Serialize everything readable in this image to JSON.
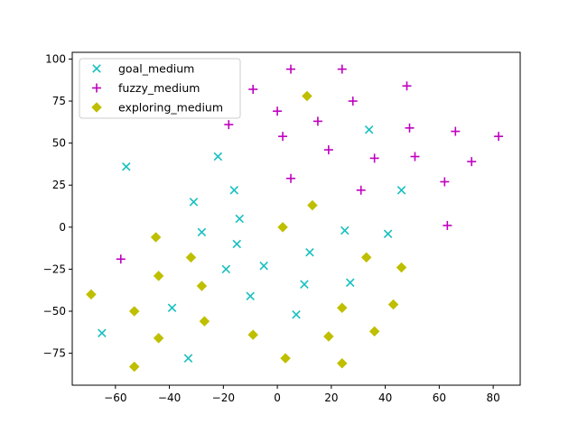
{
  "chart_data": {
    "type": "scatter",
    "title": "",
    "xlabel": "",
    "ylabel": "",
    "xlim": [
      -76,
      90
    ],
    "ylim": [
      -94,
      104
    ],
    "xticks": [
      -60,
      -40,
      -20,
      0,
      20,
      40,
      60,
      80
    ],
    "yticks": [
      -75,
      -50,
      -25,
      0,
      25,
      50,
      75,
      100
    ],
    "xtick_labels": [
      "−60",
      "−40",
      "−20",
      "0",
      "20",
      "40",
      "60",
      "80"
    ],
    "ytick_labels": [
      "−75",
      "−50",
      "−25",
      "0",
      "25",
      "50",
      "75",
      "100"
    ],
    "grid": false,
    "legend": "top-left",
    "series": [
      {
        "name": "goal_medium",
        "marker": "x",
        "color": "#17bfbf",
        "points": [
          [
            -56,
            36
          ],
          [
            -22,
            42
          ],
          [
            -31,
            15
          ],
          [
            -16,
            22
          ],
          [
            -14,
            5
          ],
          [
            -28,
            -3
          ],
          [
            -15,
            -10
          ],
          [
            -19,
            -25
          ],
          [
            -5,
            -23
          ],
          [
            12,
            -15
          ],
          [
            25,
            -2
          ],
          [
            41,
            -4
          ],
          [
            46,
            22
          ],
          [
            34,
            58
          ],
          [
            10,
            -34
          ],
          [
            27,
            -33
          ],
          [
            -10,
            -41
          ],
          [
            -39,
            -48
          ],
          [
            7,
            -52
          ],
          [
            -65,
            -63
          ],
          [
            -33,
            -78
          ]
        ]
      },
      {
        "name": "fuzzy_medium",
        "marker": "+",
        "color": "#bf00bf",
        "points": [
          [
            5,
            94
          ],
          [
            24,
            94
          ],
          [
            -9,
            82
          ],
          [
            28,
            75
          ],
          [
            48,
            84
          ],
          [
            0,
            69
          ],
          [
            15,
            63
          ],
          [
            -18,
            61
          ],
          [
            49,
            59
          ],
          [
            66,
            57
          ],
          [
            82,
            54
          ],
          [
            2,
            54
          ],
          [
            19,
            46
          ],
          [
            36,
            41
          ],
          [
            51,
            42
          ],
          [
            72,
            39
          ],
          [
            5,
            29
          ],
          [
            31,
            22
          ],
          [
            62,
            27
          ],
          [
            63,
            1
          ],
          [
            -58,
            -19
          ]
        ]
      },
      {
        "name": "exploring_medium",
        "marker": "D",
        "color": "#bfbf00",
        "points": [
          [
            11,
            78
          ],
          [
            13,
            13
          ],
          [
            2,
            0
          ],
          [
            -45,
            -6
          ],
          [
            -32,
            -18
          ],
          [
            -44,
            -29
          ],
          [
            33,
            -18
          ],
          [
            46,
            -24
          ],
          [
            -28,
            -35
          ],
          [
            -69,
            -40
          ],
          [
            -53,
            -50
          ],
          [
            24,
            -48
          ],
          [
            43,
            -46
          ],
          [
            -27,
            -56
          ],
          [
            -9,
            -64
          ],
          [
            36,
            -62
          ],
          [
            19,
            -65
          ],
          [
            -44,
            -66
          ],
          [
            3,
            -78
          ],
          [
            -53,
            -83
          ],
          [
            24,
            -81
          ]
        ]
      }
    ]
  }
}
